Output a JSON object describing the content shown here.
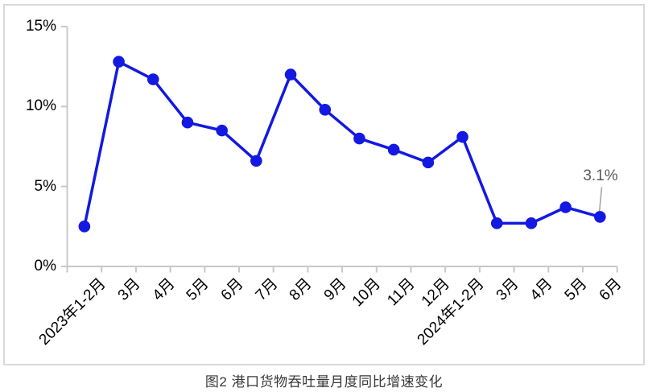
{
  "chart_data": {
    "type": "line",
    "title": "图2  港口货物吞吐量月度同比增速变化",
    "categories": [
      "2023年1-2月",
      "3月",
      "4月",
      "5月",
      "6月",
      "7月",
      "8月",
      "9月",
      "10月",
      "11月",
      "12月",
      "2024年1-2月",
      "3月",
      "4月",
      "5月",
      "6月"
    ],
    "values": [
      2.5,
      12.8,
      11.7,
      9.0,
      8.5,
      6.6,
      12.0,
      9.8,
      8.0,
      7.3,
      6.5,
      8.1,
      2.7,
      2.7,
      3.7,
      3.1
    ],
    "xlabel": "",
    "ylabel": "",
    "ylim": [
      0,
      15
    ],
    "yticks": [
      0,
      5,
      10,
      15
    ],
    "ytick_labels": [
      "0%",
      "5%",
      "10%",
      "15%"
    ],
    "grid": false,
    "legend_position": "none",
    "annotation": {
      "text": "3.1%",
      "target_index": 15
    },
    "colors": {
      "line": "#1319e0",
      "marker": "#1319e0",
      "axis": "#c8c8c8",
      "border": "#d9d9d9",
      "label_text": "#000000",
      "annotation_text": "#595959",
      "leader_line": "#a6a6a6",
      "title_text": "#383838",
      "background": "#ffffff"
    }
  }
}
